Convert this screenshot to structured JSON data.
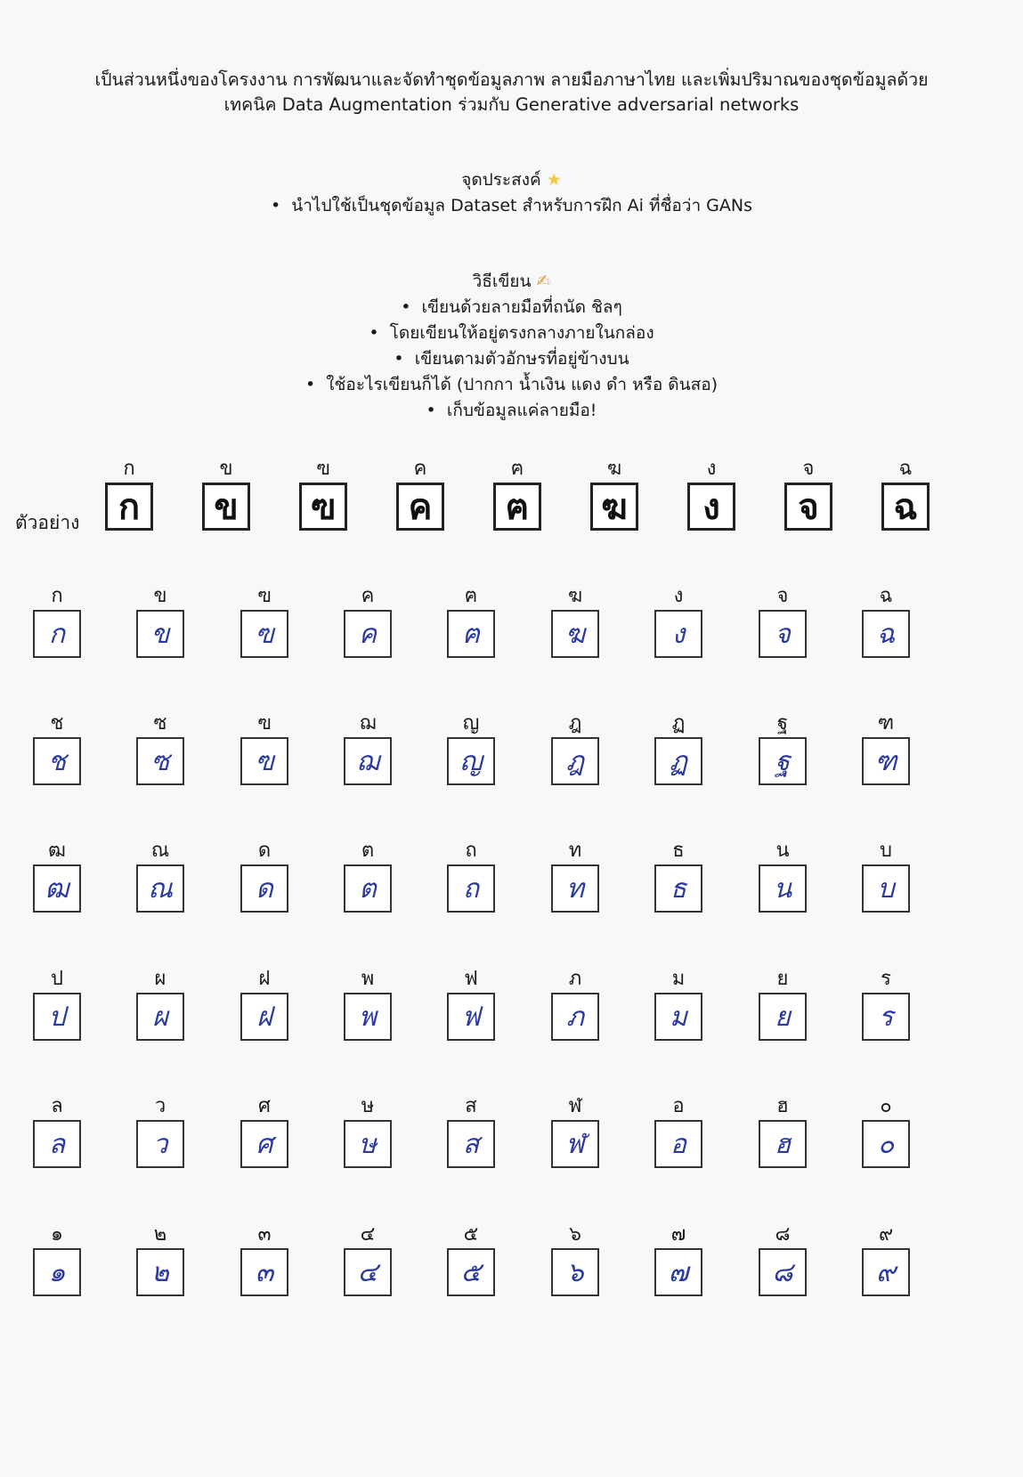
{
  "header": {
    "line1": "เป็นส่วนหนึ่งของโครงงาน การพัฒนาและจัดทำชุดข้อมูลภาพ ลายมือภาษาไทย และเพิ่มปริมาณของชุดข้อมูลด้วย",
    "line2": "เทคนิค Data Augmentation ร่วมกับ Generative adversarial networks"
  },
  "purpose": {
    "title": "จุดประสงค์",
    "title_icon": "star-icon",
    "bullet": "นำไปใช้เป็นชุดข้อมูล Dataset สำหรับการฝึก Ai ที่ชื่อว่า GANs"
  },
  "howto": {
    "title": "วิธีเขียน",
    "title_icon": "writing-hand-icon",
    "bullets": [
      "เขียนด้วยลายมือที่ถนัด ชิลๆ",
      "โดยเขียนให้อยู่ตรงกลางภายในกล่อง",
      "เขียนตามตัวอักษรที่อยู่ข้างบน",
      "ใช้อะไรเขียนก็ได้ (ปากกา น้ำเงิน แดง ดำ หรือ ดินสอ)",
      "เก็บข้อมูลแค่ลายมือ!"
    ]
  },
  "example": {
    "label": "ตัวอย่าง",
    "chars": [
      "ก",
      "ข",
      "ฃ",
      "ค",
      "ฅ",
      "ฆ",
      "ง",
      "จ",
      "ฉ"
    ]
  },
  "grid": [
    [
      "ก",
      "ข",
      "ฃ",
      "ค",
      "ฅ",
      "ฆ",
      "ง",
      "จ",
      "ฉ"
    ],
    [
      "ช",
      "ซ",
      "ฃ",
      "ฌ",
      "ญ",
      "ฎ",
      "ฏ",
      "ฐ",
      "ฑ"
    ],
    [
      "ฒ",
      "ณ",
      "ด",
      "ต",
      "ถ",
      "ท",
      "ธ",
      "น",
      "บ"
    ],
    [
      "ป",
      "ผ",
      "ฝ",
      "พ",
      "ฟ",
      "ภ",
      "ม",
      "ย",
      "ร"
    ],
    [
      "ล",
      "ว",
      "ศ",
      "ษ",
      "ส",
      "ฬ",
      "อ",
      "ฮ",
      "๐"
    ],
    [
      "๑",
      "๒",
      "๓",
      "๔",
      "๕",
      "๖",
      "๗",
      "๘",
      "๙"
    ]
  ],
  "colors": {
    "ink": "#2b3a9f",
    "box_border": "#333333"
  }
}
